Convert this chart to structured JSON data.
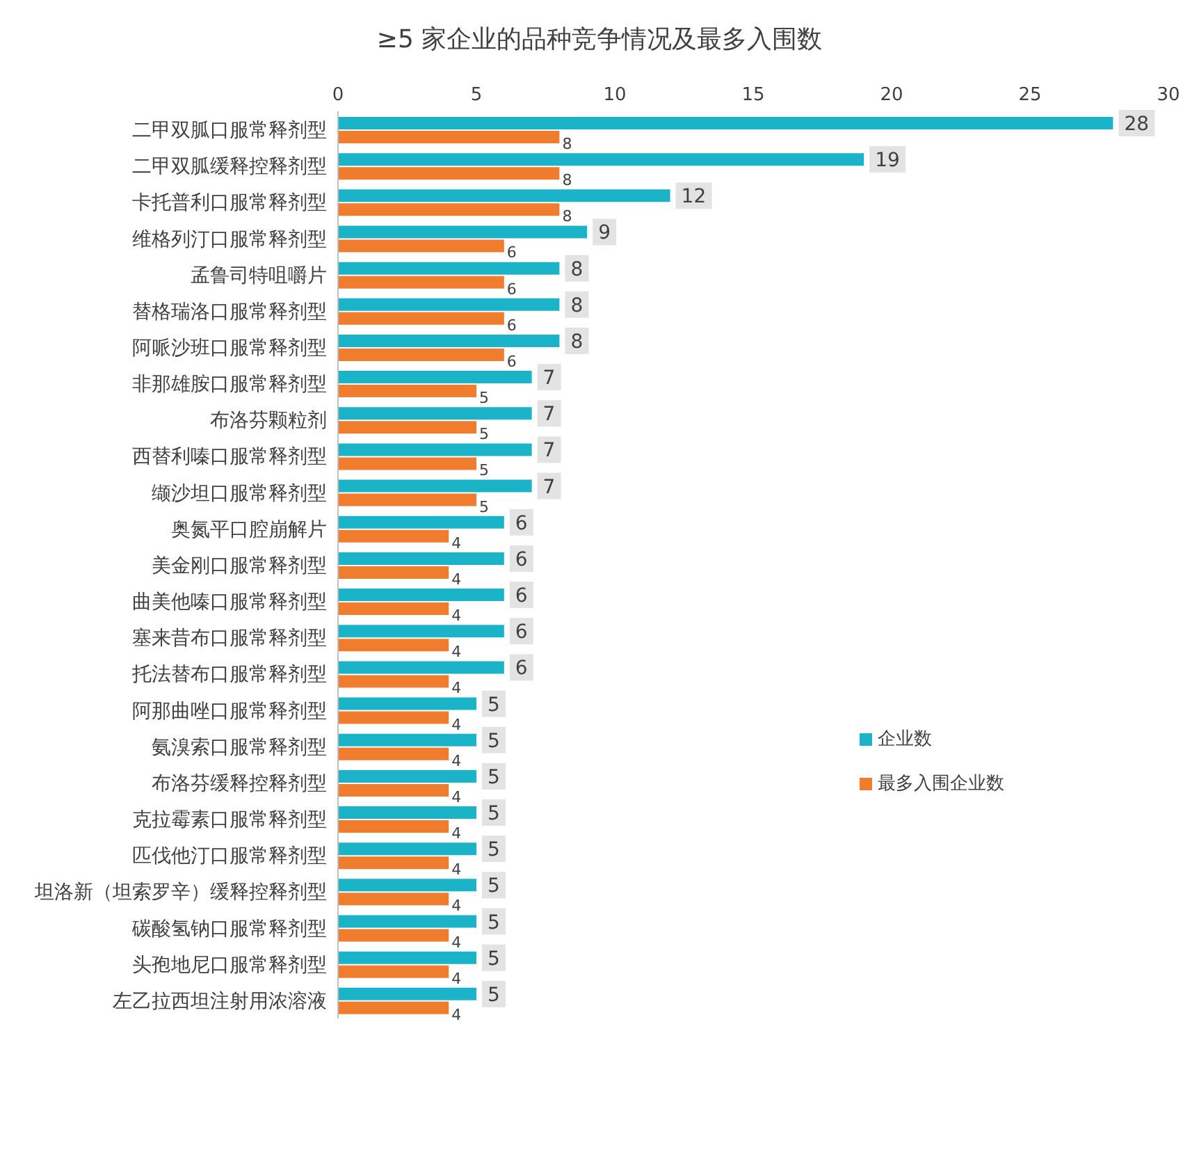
{
  "chart_data": {
    "type": "bar",
    "orientation": "horizontal",
    "title": "≥5 家企业的品种竞争情况及最多入围数",
    "categories": [
      "二甲双胍口服常释剂型",
      "二甲双胍缓释控释剂型",
      "卡托普利口服常释剂型",
      "维格列汀口服常释剂型",
      "孟鲁司特咀嚼片",
      "替格瑞洛口服常释剂型",
      "阿哌沙班口服常释剂型",
      "非那雄胺口服常释剂型",
      "布洛芬颗粒剂",
      "西替利嗪口服常释剂型",
      "缬沙坦口服常释剂型",
      "奥氮平口腔崩解片",
      "美金刚口服常释剂型",
      "曲美他嗪口服常释剂型",
      "塞来昔布口服常释剂型",
      "托法替布口服常释剂型",
      "阿那曲唑口服常释剂型",
      "氨溴索口服常释剂型",
      "布洛芬缓释控释剂型",
      "克拉霉素口服常释剂型",
      "匹伐他汀口服常释剂型",
      "坦洛新（坦索罗辛）缓释控释剂型",
      "碳酸氢钠口服常释剂型",
      "头孢地尼口服常释剂型",
      "左乙拉西坦注射用浓溶液"
    ],
    "series": [
      {
        "name": "企业数",
        "color": "#1ab3c8",
        "values": [
          28,
          19,
          12,
          9,
          8,
          8,
          8,
          7,
          7,
          7,
          7,
          6,
          6,
          6,
          6,
          6,
          5,
          5,
          5,
          5,
          5,
          5,
          5,
          5,
          5
        ]
      },
      {
        "name": "最多入围企业数",
        "color": "#f07c2e",
        "values": [
          8,
          8,
          8,
          6,
          6,
          6,
          6,
          5,
          5,
          5,
          5,
          4,
          4,
          4,
          4,
          4,
          4,
          4,
          4,
          4,
          4,
          4,
          4,
          4,
          4
        ]
      }
    ],
    "xlim": [
      0,
      30
    ],
    "xticks": [
      0,
      5,
      10,
      15,
      20,
      25,
      30
    ],
    "data_labels": true,
    "legend": "right"
  }
}
